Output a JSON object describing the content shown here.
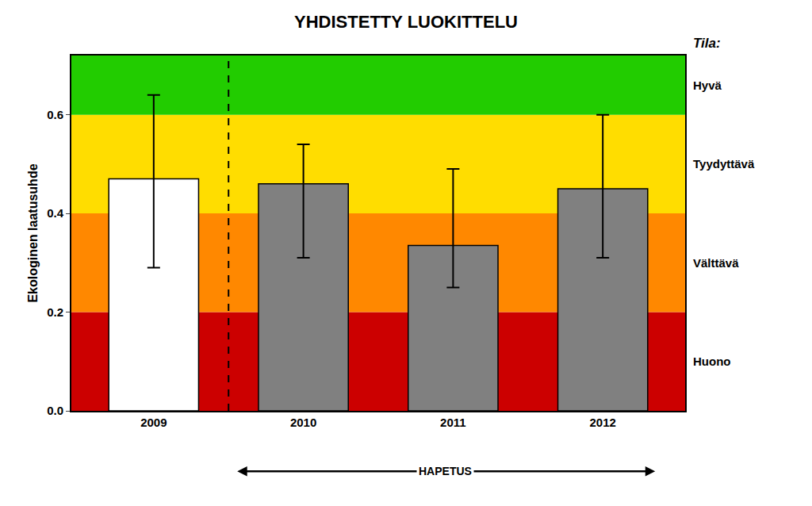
{
  "chart_data": {
    "type": "bar",
    "title": "YHDISTETTY LUOKITTELU",
    "ylabel": "Ekologinen laatusuhde",
    "categories": [
      "2009",
      "2010",
      "2011",
      "2012"
    ],
    "values": [
      0.47,
      0.46,
      0.335,
      0.45
    ],
    "colors": [
      "white",
      "#808080",
      "#808080",
      "#808080"
    ],
    "error_lower": [
      0.29,
      0.31,
      0.25,
      0.31
    ],
    "error_upper": [
      0.64,
      0.54,
      0.49,
      0.6
    ],
    "ylim": [
      0.0,
      0.72
    ],
    "yticks": [
      {
        "value": 0.0,
        "label": "0.0"
      },
      0.2,
      0.4,
      0.6
    ],
    "grid": false,
    "bands": {
      "title": "Tila:",
      "items": [
        {
          "ymin": 0.0,
          "ymax": 0.2,
          "color": "#cc0000",
          "label": "Huono"
        },
        {
          "ymin": 0.2,
          "ymax": 0.4,
          "color": "#ff8800",
          "label": "Välttävä"
        },
        {
          "ymin": 0.4,
          "ymax": 0.6,
          "color": "#ffdd00",
          "label": "Tyydyttävä"
        },
        {
          "ymin": 0.6,
          "ymax": 0.72,
          "color": "#22cc00",
          "label": "Hyvä"
        }
      ]
    },
    "annotations": [
      {
        "text": "HAPETUS"
      }
    ]
  }
}
